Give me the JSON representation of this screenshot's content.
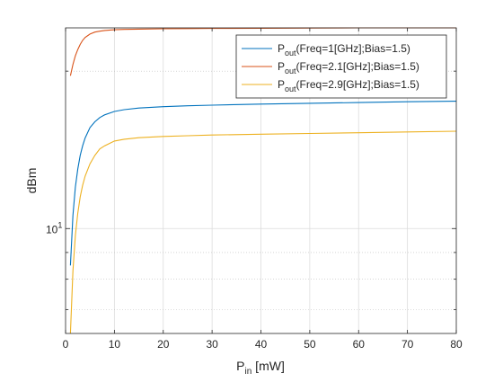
{
  "chart_data": {
    "type": "line",
    "xlabel": "P",
    "xlabel_sub": "in",
    "xlabel_unit": " [mW]",
    "ylabel": "dBm",
    "xlim": [
      0,
      80
    ],
    "ylim": [
      6.3,
      24.2
    ],
    "yscale": "log",
    "grid": true,
    "x_ticks": [
      0,
      10,
      20,
      30,
      40,
      50,
      60,
      70,
      80
    ],
    "x_tick_labels": [
      "0",
      "10",
      "20",
      "30",
      "40",
      "50",
      "60",
      "70",
      "80"
    ],
    "y_major_ticks": [
      10
    ],
    "y_tick_label_base": "10",
    "y_tick_label_exp": "1",
    "y_minor_ticks": [
      7,
      8,
      9,
      20
    ],
    "legend_position": "top-right",
    "series": [
      {
        "label_main": "P",
        "label_sub": "out",
        "label_rest": "(Freq=1[GHz];Bias=1.5)",
        "color": "#0072BD",
        "x": [
          1,
          1.5,
          2,
          2.5,
          3,
          3.5,
          4,
          5,
          6,
          7,
          8,
          10,
          12,
          15,
          20,
          25,
          30,
          40,
          50,
          60,
          70,
          80
        ],
        "y": [
          8.5,
          10.6,
          12.0,
          13.0,
          13.8,
          14.4,
          14.9,
          15.6,
          16.0,
          16.3,
          16.5,
          16.75,
          16.88,
          17.0,
          17.1,
          17.17,
          17.22,
          17.3,
          17.36,
          17.42,
          17.48,
          17.52
        ]
      },
      {
        "label_main": "P",
        "label_sub": "out",
        "label_rest": "(Freq=2.1[GHz];Bias=1.5)",
        "color": "#D95319",
        "x": [
          1,
          1.5,
          2,
          2.5,
          3,
          3.5,
          4,
          5,
          6,
          7,
          8,
          10,
          12,
          15,
          20,
          25,
          30,
          40,
          50,
          60,
          70,
          80
        ],
        "y": [
          19.6,
          20.6,
          21.4,
          22.0,
          22.5,
          22.9,
          23.2,
          23.55,
          23.75,
          23.85,
          23.92,
          24.0,
          24.04,
          24.07,
          24.1,
          24.12,
          24.14,
          24.16,
          24.18,
          24.2,
          24.2,
          24.2
        ]
      },
      {
        "label_main": "P",
        "label_sub": "out",
        "label_rest": "(Freq=2.9[GHz];Bias=1.5)",
        "color": "#EDB120",
        "x": [
          1,
          1.5,
          2,
          2.5,
          3,
          3.5,
          4,
          5,
          6,
          7,
          8,
          10,
          12,
          15,
          20,
          25,
          30,
          40,
          50,
          60,
          70,
          80
        ],
        "y": [
          6.3,
          8.3,
          9.7,
          10.7,
          11.5,
          12.1,
          12.6,
          13.3,
          13.8,
          14.2,
          14.4,
          14.7,
          14.82,
          14.92,
          15.0,
          15.05,
          15.1,
          15.15,
          15.2,
          15.25,
          15.3,
          15.35
        ]
      }
    ]
  }
}
